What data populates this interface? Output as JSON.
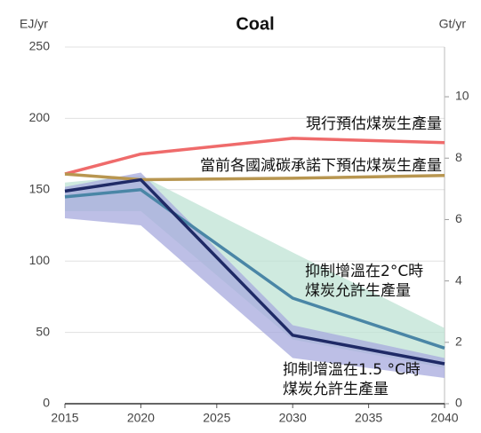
{
  "chart_data": {
    "type": "line",
    "title": "Coal",
    "y_label": "EJ/yr",
    "y2_label": "Gt/yr",
    "x": [
      2015,
      2020,
      2030,
      2040
    ],
    "xlim": [
      2015,
      2040
    ],
    "xticks": [
      2015,
      2020,
      2025,
      2030,
      2035,
      2040
    ],
    "ylim": [
      0,
      250
    ],
    "yticks": [
      0,
      50,
      100,
      150,
      200,
      250
    ],
    "y2lim": [
      0,
      11.62
    ],
    "y2ticks": [
      0,
      2,
      4,
      6,
      8,
      10
    ],
    "grid": true,
    "bands": [
      {
        "color": "#bfe3d4",
        "lower": [
          135,
          135,
          45,
          25
        ],
        "upper": [
          155,
          160,
          106,
          53
        ]
      },
      {
        "color": "#a7a9dd",
        "lower": [
          130,
          125,
          32,
          18
        ],
        "upper": [
          152,
          162,
          55,
          32
        ]
      }
    ],
    "series": [
      {
        "name": "現行預估煤炭生產量",
        "color": "#ef6b6b",
        "values": [
          161,
          175,
          186,
          183
        ]
      },
      {
        "name": "當前各國減碳承諾下預估煤炭生產量",
        "color": "#b89650",
        "values": [
          161,
          157,
          158,
          160
        ]
      },
      {
        "name": "抑制增溫在2°C時\n煤炭允許生產量",
        "color": "#4a86a6",
        "values": [
          145,
          150,
          74,
          39
        ]
      },
      {
        "name": "抑制增溫在1.5 °C時\n煤炭允許生產量",
        "color": "#1f2a66",
        "values": [
          149,
          157,
          48,
          28
        ]
      }
    ]
  }
}
